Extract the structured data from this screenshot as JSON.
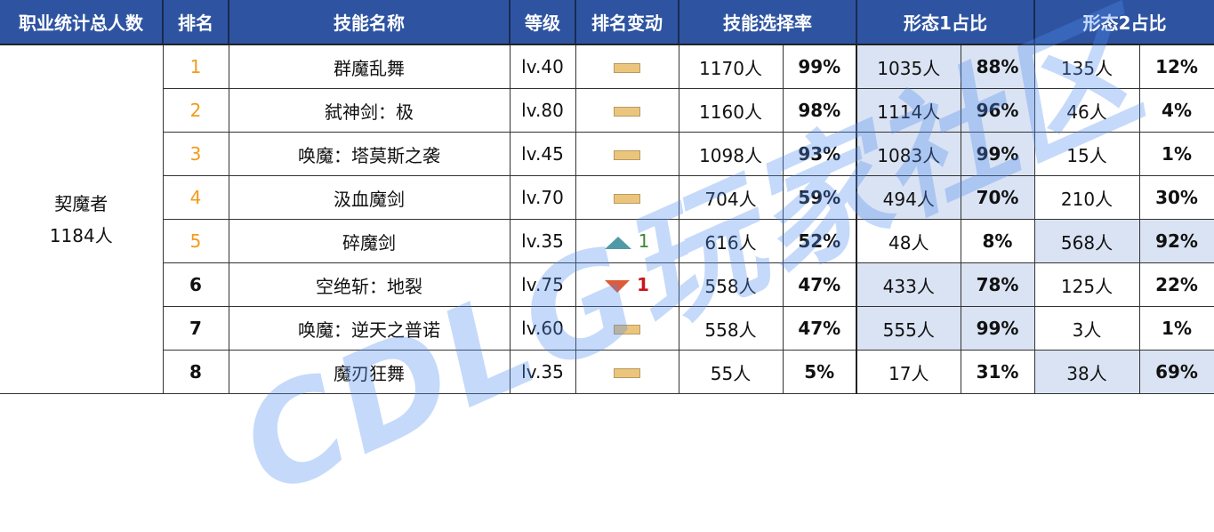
{
  "headers": [
    "职业统计总人数",
    "排名",
    "技能名称",
    "等级",
    "排名变动",
    "技能选择率",
    "形态1占比",
    "形态2占比"
  ],
  "job": {
    "name": "契魔者",
    "total": "1184人"
  },
  "rows": [
    {
      "rank": "1",
      "skill": "群魔乱舞",
      "level": "lv.40",
      "change": "flat",
      "change_value": "",
      "count": "1170人",
      "rate": "99%",
      "f1_count": "1035人",
      "f1_pct": "88%",
      "f2_count": "135人",
      "f2_pct": "12%",
      "hl": "f1"
    },
    {
      "rank": "2",
      "skill": "弑神剑：极",
      "level": "lv.80",
      "change": "flat",
      "change_value": "",
      "count": "1160人",
      "rate": "98%",
      "f1_count": "1114人",
      "f1_pct": "96%",
      "f2_count": "46人",
      "f2_pct": "4%",
      "hl": "f1"
    },
    {
      "rank": "3",
      "skill": "唤魔：塔莫斯之袭",
      "level": "lv.45",
      "change": "flat",
      "change_value": "",
      "count": "1098人",
      "rate": "93%",
      "f1_count": "1083人",
      "f1_pct": "99%",
      "f2_count": "15人",
      "f2_pct": "1%",
      "hl": "f1"
    },
    {
      "rank": "4",
      "skill": "汲血魔剑",
      "level": "lv.70",
      "change": "flat",
      "change_value": "",
      "count": "704人",
      "rate": "59%",
      "f1_count": "494人",
      "f1_pct": "70%",
      "f2_count": "210人",
      "f2_pct": "30%",
      "hl": "f1"
    },
    {
      "rank": "5",
      "skill": "碎魔剑",
      "level": "lv.35",
      "change": "up",
      "change_value": "1",
      "count": "616人",
      "rate": "52%",
      "f1_count": "48人",
      "f1_pct": "8%",
      "f2_count": "568人",
      "f2_pct": "92%",
      "hl": "f2"
    },
    {
      "rank": "6",
      "skill": "空绝斩：地裂",
      "level": "lv.75",
      "change": "down",
      "change_value": "1",
      "count": "558人",
      "rate": "47%",
      "f1_count": "433人",
      "f1_pct": "78%",
      "f2_count": "125人",
      "f2_pct": "22%",
      "hl": "f1"
    },
    {
      "rank": "7",
      "skill": "唤魔：逆天之普诺",
      "level": "lv.60",
      "change": "flat",
      "change_value": "",
      "count": "558人",
      "rate": "47%",
      "f1_count": "555人",
      "f1_pct": "99%",
      "f2_count": "3人",
      "f2_pct": "1%",
      "hl": "f1"
    },
    {
      "rank": "8",
      "skill": "魔刃狂舞",
      "level": "lv.35",
      "change": "flat",
      "change_value": "",
      "count": "55人",
      "rate": "5%",
      "f1_count": "17人",
      "f1_pct": "31%",
      "f2_count": "38人",
      "f2_pct": "69%",
      "hl": "f2"
    }
  ],
  "watermark": "CDLG玩家社区",
  "colors": {
    "header": "#2e54a1",
    "highlight": "#dae3f3",
    "rank_top": "#f39a1a",
    "up": "#4f9aa6",
    "down": "#de5b37"
  }
}
